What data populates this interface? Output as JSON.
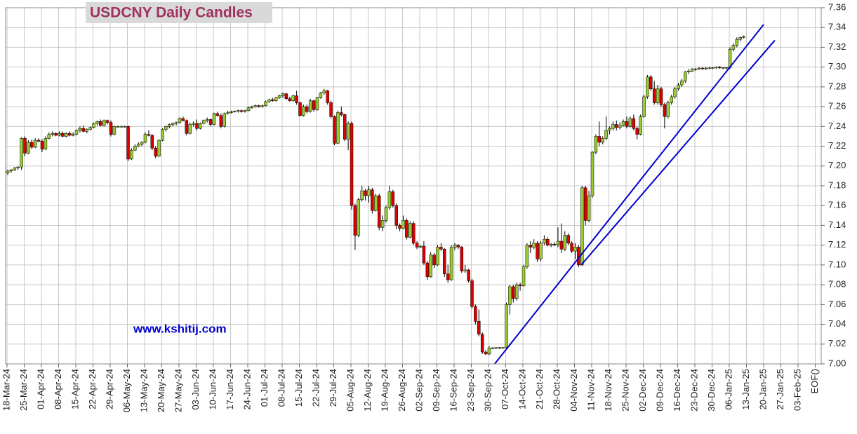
{
  "chart_data": {
    "type": "candlestick",
    "title": "USDCNY Daily Candles",
    "annotation": "www.kshitij.com",
    "categories": [
      "18-Mar-24",
      "25-Mar-24",
      "01-Apr-24",
      "08-Apr-24",
      "15-Apr-24",
      "22-Apr-24",
      "29-Apr-24",
      "06-May-24",
      "13-May-24",
      "20-May-24",
      "27-May-24",
      "03-Jun-24",
      "10-Jun-24",
      "17-Jun-24",
      "24-Jun-24",
      "01-Jul-24",
      "08-Jul-24",
      "15-Jul-24",
      "22-Jul-24",
      "29-Jul-24",
      "05-Aug-24",
      "12-Aug-24",
      "19-Aug-24",
      "26-Aug-24",
      "02-Sep-24",
      "09-Sep-24",
      "16-Sep-24",
      "23-Sep-24",
      "30-Sep-24",
      "07-Oct-24",
      "14-Oct-24",
      "21-Oct-24",
      "28-Oct-24",
      "04-Nov-24",
      "11-Nov-24",
      "18-Nov-24",
      "25-Nov-24",
      "02-Dec-24",
      "09-Dec-24",
      "16-Dec-24",
      "23-Dec-24",
      "30-Dec-24",
      "06-Jan-25",
      "13-Jan-25",
      "20-Jan-25",
      "27-Jan-25",
      "03-Feb-25",
      "EOF()"
    ],
    "up_color": "#99cc33",
    "down_color": "#dd0000",
    "ylim": [
      7.0,
      7.36
    ],
    "yticks": [
      {
        "value": 7.0,
        "label": "7.00"
      },
      7.02,
      7.04,
      7.06,
      7.08,
      {
        "value": 7.1,
        "label": "7.10"
      },
      7.12,
      7.14,
      7.16,
      7.18,
      {
        "value": 7.2,
        "label": "7.20"
      },
      7.22,
      7.24,
      7.26,
      7.28,
      {
        "value": 7.3,
        "label": "7.30"
      },
      7.32,
      7.34,
      7.36
    ],
    "grid": true,
    "ohlc": [
      [
        7.193,
        7.196,
        7.191,
        7.195
      ],
      [
        7.195,
        7.197,
        7.193,
        7.196
      ],
      [
        7.196,
        7.199,
        7.195,
        7.198
      ],
      [
        7.198,
        7.2,
        7.196,
        7.199
      ],
      [
        7.199,
        7.229,
        7.196,
        7.228
      ],
      [
        7.228,
        7.23,
        7.21,
        7.213
      ],
      [
        7.213,
        7.226,
        7.212,
        7.224
      ],
      [
        7.224,
        7.227,
        7.217,
        7.219
      ],
      [
        7.219,
        7.228,
        7.218,
        7.226
      ],
      [
        7.226,
        7.228,
        7.224,
        7.225
      ],
      [
        7.225,
        7.227,
        7.214,
        7.217
      ],
      [
        7.217,
        7.23,
        7.216,
        7.228
      ],
      [
        7.228,
        7.234,
        7.227,
        7.232
      ],
      [
        7.232,
        7.235,
        7.23,
        7.233
      ],
      [
        7.233,
        7.234,
        7.23,
        7.231
      ],
      [
        7.231,
        7.235,
        7.23,
        7.233
      ],
      [
        7.233,
        7.235,
        7.229,
        7.23
      ],
      [
        7.23,
        7.234,
        7.229,
        7.233
      ],
      [
        7.233,
        7.235,
        7.23,
        7.231
      ],
      [
        7.231,
        7.234,
        7.23,
        7.232
      ],
      [
        7.232,
        7.237,
        7.231,
        7.236
      ],
      [
        7.236,
        7.24,
        7.234,
        7.238
      ],
      [
        7.238,
        7.241,
        7.234,
        7.235
      ],
      [
        7.235,
        7.238,
        7.233,
        7.237
      ],
      [
        7.237,
        7.24,
        7.236,
        7.239
      ],
      [
        7.239,
        7.244,
        7.238,
        7.243
      ],
      [
        7.243,
        7.246,
        7.241,
        7.245
      ],
      [
        7.245,
        7.247,
        7.24,
        7.241
      ],
      [
        7.241,
        7.247,
        7.24,
        7.246
      ],
      [
        7.246,
        7.247,
        7.242,
        7.244
      ],
      [
        7.244,
        7.246,
        7.23,
        7.232
      ],
      [
        7.232,
        7.241,
        7.231,
        7.24
      ],
      [
        7.24,
        7.241,
        7.239,
        7.24
      ],
      [
        7.24,
        7.241,
        7.239,
        7.24
      ],
      [
        7.24,
        7.241,
        7.239,
        7.24
      ],
      [
        7.24,
        7.241,
        7.205,
        7.207
      ],
      [
        7.207,
        7.218,
        7.206,
        7.216
      ],
      [
        7.216,
        7.222,
        7.215,
        7.22
      ],
      [
        7.22,
        7.224,
        7.219,
        7.222
      ],
      [
        7.222,
        7.225,
        7.22,
        7.224
      ],
      [
        7.224,
        7.234,
        7.223,
        7.232
      ],
      [
        7.232,
        7.236,
        7.23,
        7.231
      ],
      [
        7.231,
        7.232,
        7.216,
        7.218
      ],
      [
        7.218,
        7.22,
        7.208,
        7.21
      ],
      [
        7.21,
        7.227,
        7.209,
        7.226
      ],
      [
        7.226,
        7.238,
        7.225,
        7.237
      ],
      [
        7.237,
        7.241,
        7.235,
        7.24
      ],
      [
        7.24,
        7.243,
        7.238,
        7.242
      ],
      [
        7.242,
        7.244,
        7.24,
        7.243
      ],
      [
        7.243,
        7.245,
        7.241,
        7.244
      ],
      [
        7.244,
        7.249,
        7.243,
        7.248
      ],
      [
        7.248,
        7.25,
        7.245,
        7.246
      ],
      [
        7.246,
        7.247,
        7.231,
        7.233
      ],
      [
        7.233,
        7.244,
        7.232,
        7.242
      ],
      [
        7.242,
        7.245,
        7.24,
        7.243
      ],
      [
        7.243,
        7.247,
        7.236,
        7.238
      ],
      [
        7.238,
        7.244,
        7.237,
        7.243
      ],
      [
        7.243,
        7.247,
        7.242,
        7.246
      ],
      [
        7.246,
        7.249,
        7.244,
        7.247
      ],
      [
        7.247,
        7.248,
        7.24,
        7.242
      ],
      [
        7.242,
        7.254,
        7.241,
        7.253
      ],
      [
        7.253,
        7.255,
        7.25,
        7.251
      ],
      [
        7.251,
        7.253,
        7.238,
        7.24
      ],
      [
        7.24,
        7.254,
        7.239,
        7.253
      ],
      [
        7.253,
        7.256,
        7.252,
        7.254
      ],
      [
        7.254,
        7.256,
        7.253,
        7.255
      ],
      [
        7.255,
        7.256,
        7.254,
        7.2555
      ],
      [
        7.2555,
        7.257,
        7.254,
        7.256
      ],
      [
        7.256,
        7.257,
        7.254,
        7.255
      ],
      [
        7.255,
        7.257,
        7.254,
        7.256
      ],
      [
        7.256,
        7.26,
        7.255,
        7.259
      ],
      [
        7.259,
        7.261,
        7.258,
        7.26
      ],
      [
        7.26,
        7.262,
        7.259,
        7.261
      ],
      [
        7.261,
        7.262,
        7.259,
        7.26
      ],
      [
        7.26,
        7.262,
        7.259,
        7.261
      ],
      [
        7.261,
        7.266,
        7.26,
        7.265
      ],
      [
        7.265,
        7.268,
        7.264,
        7.267
      ],
      [
        7.267,
        7.269,
        7.265,
        7.266
      ],
      [
        7.266,
        7.27,
        7.265,
        7.269
      ],
      [
        7.269,
        7.272,
        7.268,
        7.271
      ],
      [
        7.271,
        7.274,
        7.269,
        7.273
      ],
      [
        7.273,
        7.274,
        7.267,
        7.268
      ],
      [
        7.268,
        7.27,
        7.265,
        7.266
      ],
      [
        7.266,
        7.272,
        7.265,
        7.271
      ],
      [
        7.271,
        7.276,
        7.262,
        7.264
      ],
      [
        7.264,
        7.265,
        7.25,
        7.251
      ],
      [
        7.251,
        7.262,
        7.25,
        7.26
      ],
      [
        7.26,
        7.262,
        7.253,
        7.255
      ],
      [
        7.255,
        7.268,
        7.254,
        7.266
      ],
      [
        7.266,
        7.267,
        7.255,
        7.257
      ],
      [
        7.257,
        7.27,
        7.256,
        7.269
      ],
      [
        7.269,
        7.275,
        7.268,
        7.274
      ],
      [
        7.274,
        7.278,
        7.272,
        7.276
      ],
      [
        7.276,
        7.277,
        7.262,
        7.264
      ],
      [
        7.264,
        7.266,
        7.248,
        7.25
      ],
      [
        7.25,
        7.251,
        7.221,
        7.223
      ],
      [
        7.223,
        7.256,
        7.222,
        7.254
      ],
      [
        7.254,
        7.26,
        7.25,
        7.252
      ],
      [
        7.252,
        7.253,
        7.225,
        7.227
      ],
      [
        7.227,
        7.245,
        7.216,
        7.243
      ],
      [
        7.243,
        7.245,
        7.156,
        7.16
      ],
      [
        7.16,
        7.162,
        7.115,
        7.13
      ],
      [
        7.13,
        7.168,
        7.128,
        7.166
      ],
      [
        7.166,
        7.18,
        7.164,
        7.175
      ],
      [
        7.175,
        7.177,
        7.165,
        7.17
      ],
      [
        7.17,
        7.18,
        7.163,
        7.176
      ],
      [
        7.176,
        7.178,
        7.152,
        7.155
      ],
      [
        7.155,
        7.172,
        7.154,
        7.17
      ],
      [
        7.17,
        7.172,
        7.135,
        7.138
      ],
      [
        7.138,
        7.15,
        7.134,
        7.145
      ],
      [
        7.145,
        7.16,
        7.143,
        7.158
      ],
      [
        7.158,
        7.18,
        7.156,
        7.174
      ],
      [
        7.174,
        7.176,
        7.158,
        7.16
      ],
      [
        7.16,
        7.162,
        7.136,
        7.14
      ],
      [
        7.14,
        7.142,
        7.134,
        7.137
      ],
      [
        7.137,
        7.15,
        7.136,
        7.145
      ],
      [
        7.145,
        7.147,
        7.126,
        7.128
      ],
      [
        7.128,
        7.144,
        7.127,
        7.142
      ],
      [
        7.142,
        7.144,
        7.12,
        7.122
      ],
      [
        7.122,
        7.124,
        7.116,
        7.118
      ],
      [
        7.118,
        7.12,
        7.117,
        7.119
      ],
      [
        7.119,
        7.124,
        7.1,
        7.102
      ],
      [
        7.102,
        7.104,
        7.085,
        7.088
      ],
      [
        7.088,
        7.113,
        7.087,
        7.11
      ],
      [
        7.11,
        7.112,
        7.097,
        7.1
      ],
      [
        7.1,
        7.12,
        7.099,
        7.118
      ],
      [
        7.118,
        7.122,
        7.114,
        7.116
      ],
      [
        7.116,
        7.117,
        7.088,
        7.091
      ],
      [
        7.091,
        7.1,
        7.082,
        7.085
      ],
      [
        7.085,
        7.12,
        7.084,
        7.118
      ],
      [
        7.118,
        7.122,
        7.115,
        7.12
      ],
      [
        7.12,
        7.121,
        7.116,
        7.118
      ],
      [
        7.118,
        7.119,
        7.092,
        7.094
      ],
      [
        7.094,
        7.1,
        7.092,
        7.095
      ],
      [
        7.095,
        7.096,
        7.082,
        7.084
      ],
      [
        7.084,
        7.086,
        7.056,
        7.058
      ],
      [
        7.058,
        7.06,
        7.04,
        7.043
      ],
      [
        7.043,
        7.055,
        7.028,
        7.03
      ],
      [
        7.03,
        7.032,
        7.01,
        7.012
      ],
      [
        7.012,
        7.014,
        7.009,
        7.01
      ],
      [
        7.01,
        7.018,
        7.009,
        7.016
      ],
      [
        7.016,
        7.017,
        7.015,
        7.0162
      ],
      [
        7.0162,
        7.017,
        7.015,
        7.0164
      ],
      [
        7.0164,
        7.017,
        7.015,
        7.0165
      ],
      [
        7.0165,
        7.017,
        7.015,
        7.0166
      ],
      [
        7.0166,
        7.062,
        7.015,
        7.06
      ],
      [
        7.06,
        7.08,
        7.05,
        7.078
      ],
      [
        7.078,
        7.08,
        7.062,
        7.066
      ],
      [
        7.066,
        7.082,
        7.064,
        7.08
      ],
      [
        7.08,
        7.082,
        7.074,
        7.079
      ],
      [
        7.079,
        7.1,
        7.078,
        7.098
      ],
      [
        7.098,
        7.122,
        7.096,
        7.12
      ],
      [
        7.12,
        7.124,
        7.112,
        7.118
      ],
      [
        7.118,
        7.126,
        7.116,
        7.122
      ],
      [
        7.122,
        7.124,
        7.103,
        7.106
      ],
      [
        7.106,
        7.124,
        7.104,
        7.122
      ],
      [
        7.122,
        7.13,
        7.12,
        7.126
      ],
      [
        7.126,
        7.128,
        7.119,
        7.12
      ],
      [
        7.12,
        7.122,
        7.118,
        7.121
      ],
      [
        7.121,
        7.123,
        7.119,
        7.1205
      ],
      [
        7.1205,
        7.138,
        7.118,
        7.124
      ],
      [
        7.124,
        7.142,
        7.112,
        7.116
      ],
      [
        7.116,
        7.134,
        7.114,
        7.13
      ],
      [
        7.13,
        7.132,
        7.12,
        7.122
      ],
      [
        7.122,
        7.124,
        7.112,
        7.114
      ],
      [
        7.114,
        7.122,
        7.106,
        7.118
      ],
      [
        7.118,
        7.12,
        7.098,
        7.1
      ],
      [
        7.1,
        7.18,
        7.099,
        7.178
      ],
      [
        7.178,
        7.18,
        7.14,
        7.145
      ],
      [
        7.145,
        7.175,
        7.143,
        7.17
      ],
      [
        7.17,
        7.215,
        7.168,
        7.214
      ],
      [
        7.214,
        7.232,
        7.212,
        7.23
      ],
      [
        7.23,
        7.245,
        7.22,
        7.224
      ],
      [
        7.224,
        7.23,
        7.222,
        7.228
      ],
      [
        7.228,
        7.25,
        7.226,
        7.236
      ],
      [
        7.236,
        7.24,
        7.232,
        7.238
      ],
      [
        7.238,
        7.245,
        7.236,
        7.242
      ],
      [
        7.242,
        7.246,
        7.236,
        7.239
      ],
      [
        7.239,
        7.244,
        7.237,
        7.241
      ],
      [
        7.241,
        7.247,
        7.24,
        7.245
      ],
      [
        7.245,
        7.25,
        7.238,
        7.24
      ],
      [
        7.24,
        7.25,
        7.239,
        7.248
      ],
      [
        7.248,
        7.252,
        7.236,
        7.238
      ],
      [
        7.238,
        7.24,
        7.227,
        7.232
      ],
      [
        7.232,
        7.252,
        7.231,
        7.25
      ],
      [
        7.25,
        7.272,
        7.249,
        7.27
      ],
      [
        7.27,
        7.292,
        7.268,
        7.29
      ],
      [
        7.29,
        7.292,
        7.276,
        7.278
      ],
      [
        7.278,
        7.286,
        7.262,
        7.264
      ],
      [
        7.264,
        7.282,
        7.262,
        7.278
      ],
      [
        7.278,
        7.28,
        7.26,
        7.262
      ],
      [
        7.262,
        7.264,
        7.238,
        7.25
      ],
      [
        7.25,
        7.266,
        7.248,
        7.264
      ],
      [
        7.264,
        7.272,
        7.262,
        7.27
      ],
      [
        7.27,
        7.28,
        7.268,
        7.278
      ],
      [
        7.278,
        7.284,
        7.276,
        7.282
      ],
      [
        7.282,
        7.288,
        7.28,
        7.286
      ],
      [
        7.286,
        7.296,
        7.284,
        7.295
      ],
      [
        7.295,
        7.298,
        7.293,
        7.296
      ],
      [
        7.296,
        7.299,
        7.295,
        7.298
      ],
      [
        7.298,
        7.299,
        7.296,
        7.2982
      ],
      [
        7.2982,
        7.3,
        7.297,
        7.299
      ],
      [
        7.299,
        7.3,
        7.297,
        7.2985
      ],
      [
        7.2985,
        7.3,
        7.297,
        7.299
      ],
      [
        7.299,
        7.3,
        7.298,
        7.2992
      ],
      [
        7.2992,
        7.3,
        7.298,
        7.2994
      ],
      [
        7.2994,
        7.3,
        7.298,
        7.3
      ],
      [
        7.3,
        7.301,
        7.298,
        7.2993
      ],
      [
        7.2993,
        7.3,
        7.298,
        7.2995
      ],
      [
        7.2995,
        7.3,
        7.298,
        7.2996
      ],
      [
        7.2996,
        7.32,
        7.298,
        7.318
      ],
      [
        7.318,
        7.324,
        7.316,
        7.322
      ],
      [
        7.322,
        7.33,
        7.32,
        7.328
      ],
      [
        7.328,
        7.331,
        7.326,
        7.33
      ],
      [
        7.33,
        7.332,
        7.329,
        7.331
      ]
    ],
    "trend_lines": [
      {
        "color": "#0000cc",
        "x": [
          28.36,
          44.0
        ],
        "y": [
          7.0,
          7.343
        ]
      },
      {
        "color": "#0000cc",
        "x": [
          33.39,
          44.65
        ],
        "y": [
          7.1,
          7.327
        ]
      }
    ]
  }
}
